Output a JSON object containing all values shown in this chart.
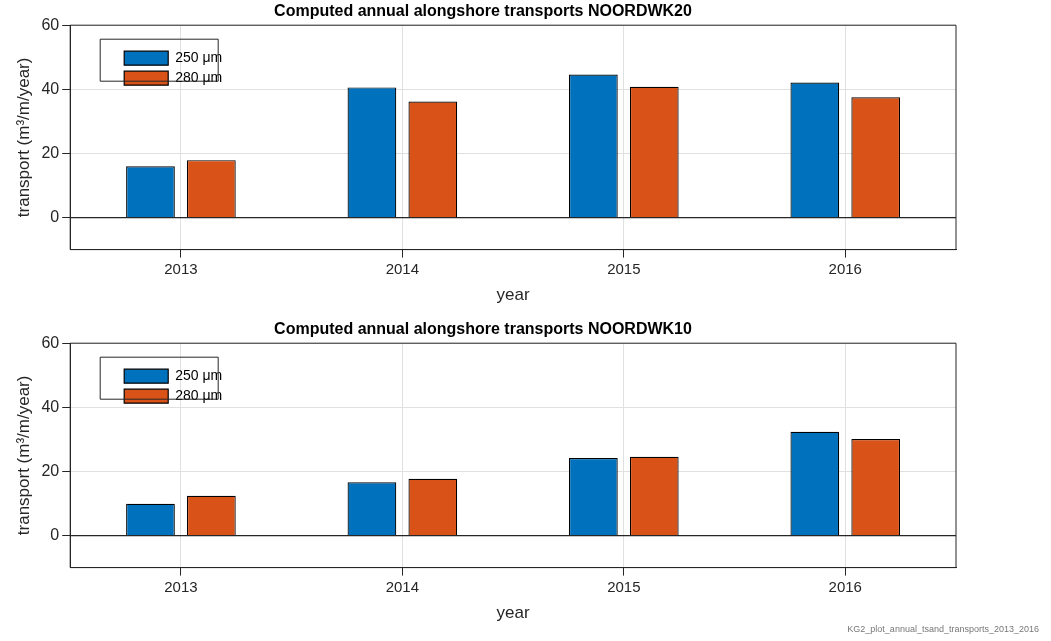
{
  "chart_data": [
    {
      "type": "bar",
      "title": "Computed annual alongshore transports NOORDWK20",
      "xlabel": "year",
      "ylabel": "transport (m³/m/year)",
      "categories": [
        "2013",
        "2014",
        "2015",
        "2016"
      ],
      "series": [
        {
          "name": "250 μm",
          "color": "#0072bd",
          "values": [
            16.0,
            40.6,
            44.6,
            42.1
          ]
        },
        {
          "name": "280 μm",
          "color": "#d95319",
          "values": [
            17.9,
            36.2,
            40.8,
            37.5
          ]
        }
      ],
      "ylim": [
        -10,
        60
      ],
      "yticks": [
        0,
        20,
        40,
        60
      ],
      "grid": true,
      "legend": "top left",
      "ref_lines": [
        {
          "axis": "y",
          "value": 0,
          "color": "#262626"
        }
      ]
    },
    {
      "type": "bar",
      "title": "Computed annual alongshore transports NOORDWK10",
      "xlabel": "year",
      "ylabel": "transport (m³/m/year)",
      "categories": [
        "2013",
        "2014",
        "2015",
        "2016"
      ],
      "series": [
        {
          "name": "250 μm",
          "color": "#0072bd",
          "values": [
            9.9,
            16.6,
            24.2,
            32.4
          ]
        },
        {
          "name": "280 μm",
          "color": "#d95319",
          "values": [
            12.4,
            17.7,
            24.6,
            30.1
          ]
        }
      ],
      "ylim": [
        -10,
        60
      ],
      "yticks": [
        0,
        20,
        40,
        60
      ],
      "grid": true,
      "legend": "top left",
      "ref_lines": [
        {
          "axis": "y",
          "value": 0,
          "color": "#262626"
        }
      ],
      "annotations": [
        "KG2_plot_annual_tsand_transports_2013_2016"
      ]
    }
  ]
}
